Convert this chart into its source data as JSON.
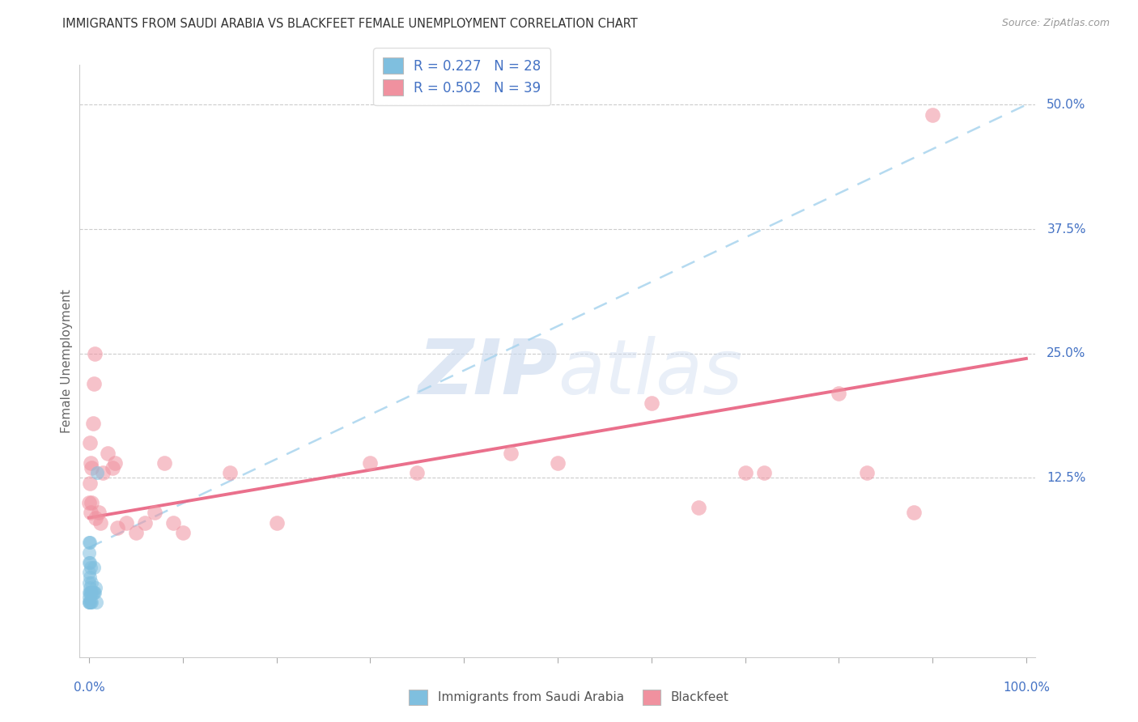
{
  "title": "IMMIGRANTS FROM SAUDI ARABIA VS BLACKFEET FEMALE UNEMPLOYMENT CORRELATION CHART",
  "source": "Source: ZipAtlas.com",
  "ylabel": "Female Unemployment",
  "color_blue": "#7fbfdf",
  "color_pink": "#f0919f",
  "line_blue": "#a8d4ee",
  "line_pink": "#e86080",
  "watermark_zip": "ZIP",
  "watermark_atlas": "atlas",
  "ytick_labels": [
    "12.5%",
    "25.0%",
    "37.5%",
    "50.0%"
  ],
  "ytick_values": [
    0.125,
    0.25,
    0.375,
    0.5
  ],
  "xlim": [
    -0.01,
    1.01
  ],
  "ylim": [
    -0.055,
    0.54
  ],
  "blue_line_x": [
    0.0,
    1.0
  ],
  "blue_line_y": [
    0.055,
    0.5
  ],
  "pink_line_x": [
    0.0,
    1.0
  ],
  "pink_line_y": [
    0.085,
    0.245
  ],
  "saudi_x": [
    0.0,
    0.0,
    0.0,
    0.0,
    0.0,
    0.0,
    0.0,
    0.0,
    0.0,
    0.001,
    0.001,
    0.001,
    0.001,
    0.001,
    0.001,
    0.002,
    0.002,
    0.002,
    0.003,
    0.003,
    0.003,
    0.004,
    0.005,
    0.005,
    0.006,
    0.007,
    0.008,
    0.009
  ],
  "saudi_y": [
    0.0,
    0.0,
    0.005,
    0.01,
    0.02,
    0.03,
    0.04,
    0.05,
    0.06,
    0.0,
    0.01,
    0.015,
    0.025,
    0.04,
    0.06,
    0.0,
    0.01,
    0.035,
    0.0,
    0.01,
    0.02,
    0.01,
    0.01,
    0.035,
    0.01,
    0.015,
    0.0,
    0.13
  ],
  "blackfeet_x": [
    0.0,
    0.001,
    0.001,
    0.002,
    0.002,
    0.003,
    0.003,
    0.004,
    0.005,
    0.006,
    0.007,
    0.01,
    0.012,
    0.015,
    0.02,
    0.025,
    0.028,
    0.03,
    0.04,
    0.05,
    0.06,
    0.07,
    0.08,
    0.09,
    0.1,
    0.15,
    0.2,
    0.3,
    0.35,
    0.45,
    0.5,
    0.6,
    0.65,
    0.7,
    0.72,
    0.8,
    0.83,
    0.88,
    0.9
  ],
  "blackfeet_y": [
    0.1,
    0.12,
    0.16,
    0.09,
    0.14,
    0.1,
    0.135,
    0.18,
    0.22,
    0.25,
    0.085,
    0.09,
    0.08,
    0.13,
    0.15,
    0.135,
    0.14,
    0.075,
    0.08,
    0.07,
    0.08,
    0.09,
    0.14,
    0.08,
    0.07,
    0.13,
    0.08,
    0.14,
    0.13,
    0.15,
    0.14,
    0.2,
    0.095,
    0.13,
    0.13,
    0.21,
    0.13,
    0.09,
    0.49
  ]
}
